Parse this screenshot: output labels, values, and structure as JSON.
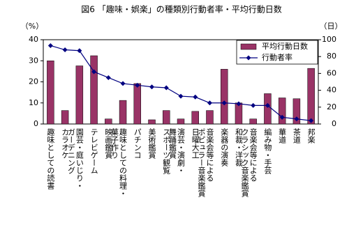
{
  "chart_data": {
    "type": "bar_line",
    "title": "図6 「趣味・娯楽」の種類別行動者率・平均行動日数",
    "y_label": "（%）",
    "y2_label": "（日）",
    "categories": [
      "趣味としての読書",
      "カラオケ",
      "園芸・庭いじり・ガーデニング",
      "テレビゲーム",
      "映画鑑賞",
      "趣味としての料理・菓子作り",
      "パチンコ",
      "美術鑑賞",
      "スポーツ観覧",
      "演芸・演劇・舞踊鑑賞",
      "日曜大工",
      "音楽会等によるポピュラー音楽鑑賞",
      "楽器の演奏",
      "和裁・洋裁",
      "音楽会等によるクラシック音楽鑑賞",
      "編み物・手芸",
      "華道",
      "茶道",
      "邦楽"
    ],
    "series": [
      {
        "name": "平均行動日数",
        "type": "bar",
        "axis": "y2",
        "color": "#993366",
        "values": [
          75,
          16,
          69,
          81,
          6,
          28,
          48,
          5,
          16,
          6,
          15,
          16,
          65,
          25,
          6,
          36,
          31,
          30,
          66
        ]
      },
      {
        "name": "行動者率",
        "type": "line",
        "axis": "y",
        "color": "#000080",
        "values": [
          37.2,
          35.2,
          34.8,
          24.8,
          22,
          19.2,
          18.4,
          17.6,
          17.2,
          13.2,
          12.8,
          10,
          10,
          9.6,
          8.8,
          8.8,
          3.2,
          2.4,
          1.6
        ]
      }
    ],
    "ylim": [
      0,
      40
    ],
    "yticks": [
      0,
      10,
      20,
      30,
      40
    ],
    "y2lim": [
      0,
      100
    ],
    "y2ticks": [
      0,
      20,
      40,
      60,
      80,
      100
    ],
    "legend": "top-right"
  }
}
